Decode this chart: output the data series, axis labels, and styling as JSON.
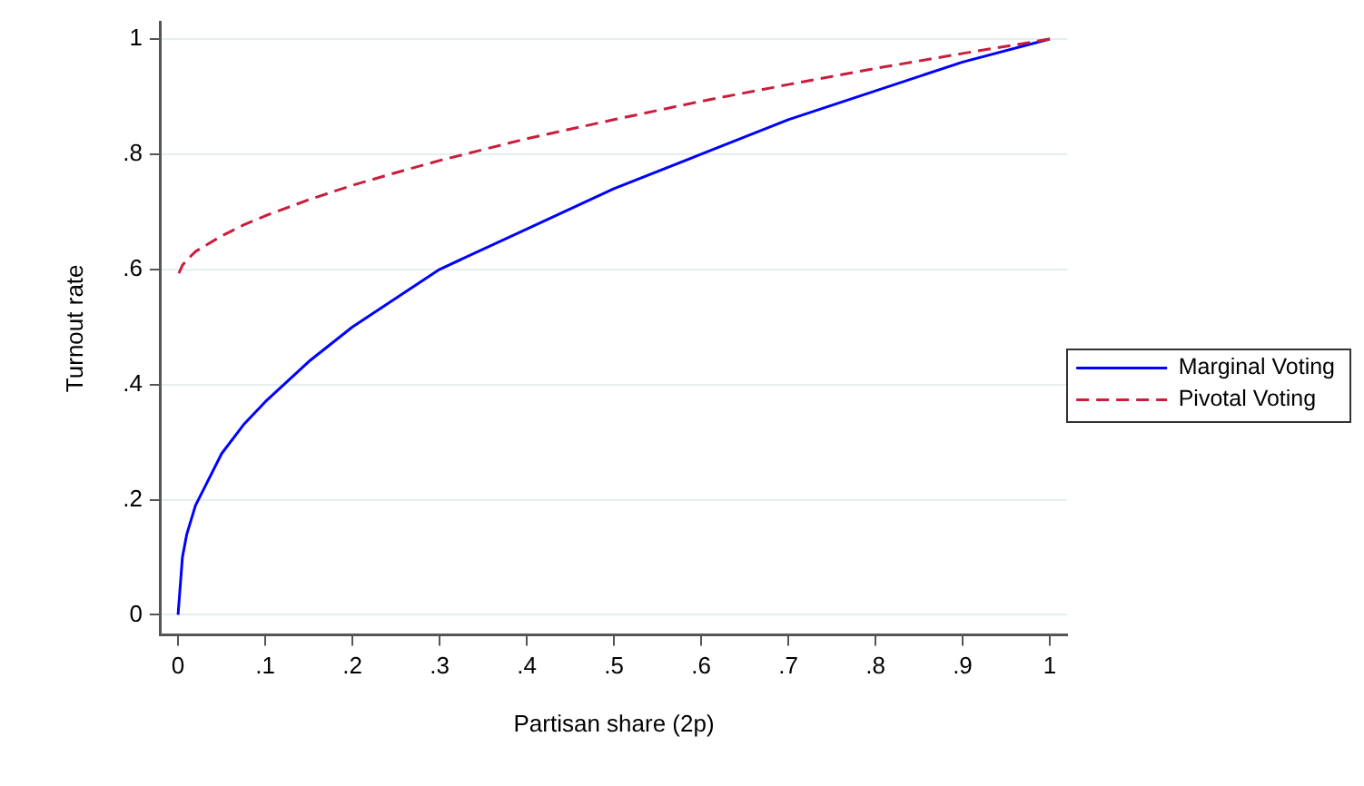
{
  "chart_data": {
    "type": "line",
    "xlabel": "Partisan share (2p)",
    "ylabel": "Turnout rate",
    "x": [
      0,
      0.005,
      0.01,
      0.02,
      0.03,
      0.05,
      0.075,
      0.1,
      0.15,
      0.2,
      0.25,
      0.3,
      0.4,
      0.5,
      0.6,
      0.7,
      0.8,
      0.9,
      1
    ],
    "series": [
      {
        "name": "Marginal Voting",
        "color": "#0000ff",
        "line_style": "solid",
        "values": [
          0,
          0.1,
          0.14,
          0.19,
          0.22,
          0.28,
          0.33,
          0.37,
          0.44,
          0.5,
          0.55,
          0.6,
          0.67,
          0.74,
          0.8,
          0.86,
          0.91,
          0.96,
          1
        ]
      },
      {
        "name": "Pivotal Voting",
        "color": "#c81e3c",
        "line_style": "dashed",
        "values": [
          0.59,
          0.607,
          0.616,
          0.631,
          0.64,
          0.658,
          0.677,
          0.693,
          0.721,
          0.746,
          0.768,
          0.789,
          0.827,
          0.86,
          0.892,
          0.921,
          0.949,
          0.975,
          1
        ]
      }
    ],
    "xlim": [
      -0.02,
      1.02
    ],
    "ylim": [
      -0.035,
      1.03
    ],
    "xticks": [
      0,
      {
        "value": 0.1,
        "label": ".1"
      },
      {
        "value": 0.2,
        "label": ".2"
      },
      {
        "value": 0.3,
        "label": ".3"
      },
      {
        "value": 0.4,
        "label": ".4"
      },
      {
        "value": 0.5,
        "label": ".5"
      },
      {
        "value": 0.6,
        "label": ".6"
      },
      {
        "value": 0.7,
        "label": ".7"
      },
      {
        "value": 0.8,
        "label": ".8"
      },
      {
        "value": 0.9,
        "label": ".9"
      },
      1
    ],
    "yticks": [
      0,
      {
        "value": 0.2,
        "label": ".2"
      },
      {
        "value": 0.4,
        "label": ".4"
      },
      {
        "value": 0.6,
        "label": ".6"
      },
      {
        "value": 0.8,
        "label": ".8"
      },
      1
    ],
    "grid": "y",
    "legend": "right"
  }
}
